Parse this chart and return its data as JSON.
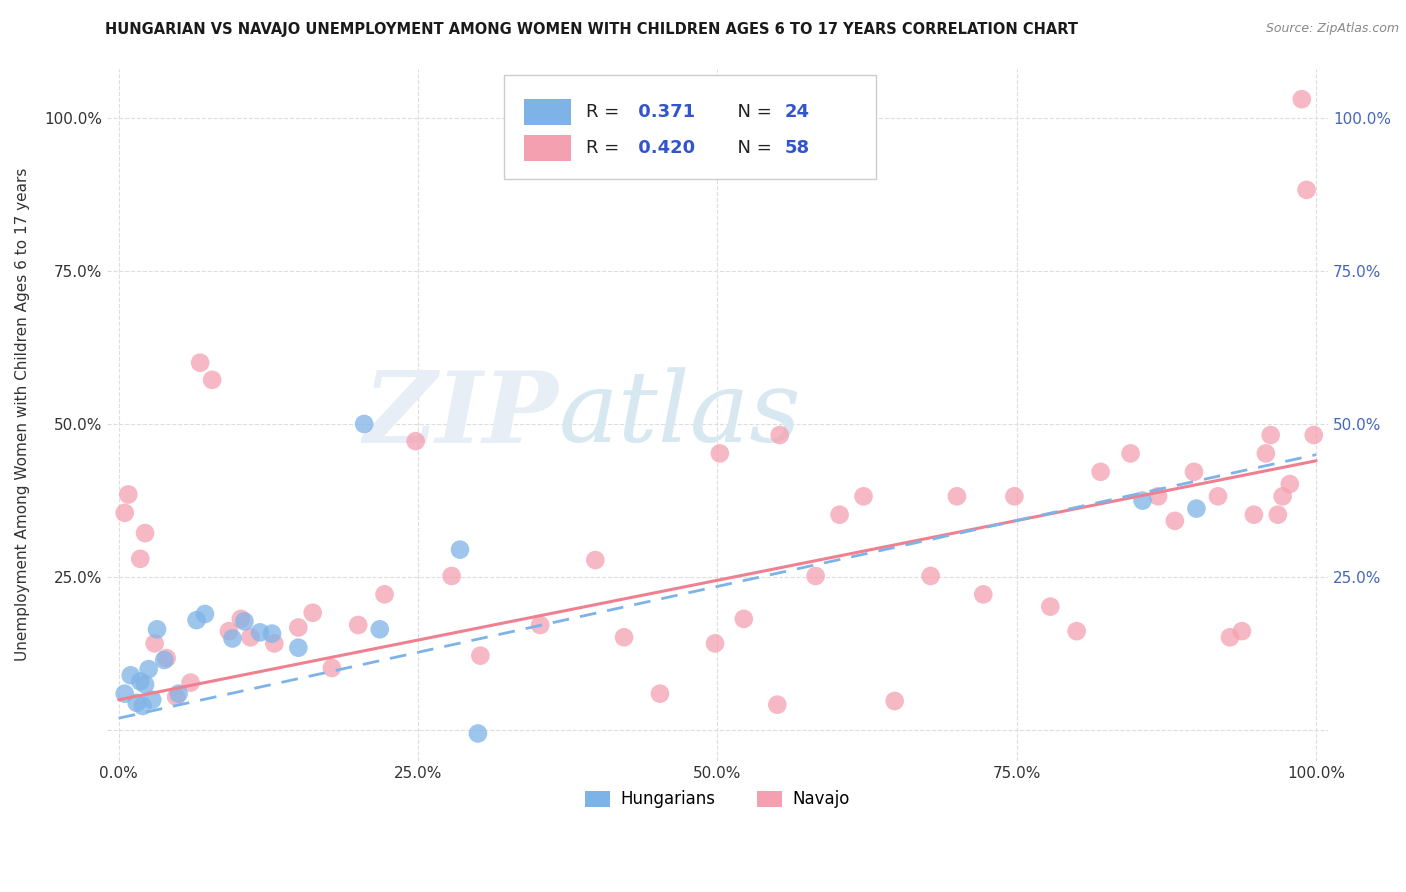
{
  "title": "HUNGARIAN VS NAVAJO UNEMPLOYMENT AMONG WOMEN WITH CHILDREN AGES 6 TO 17 YEARS CORRELATION CHART",
  "source": "Source: ZipAtlas.com",
  "ylabel": "Unemployment Among Women with Children Ages 6 to 17 years",
  "xlim": [
    -0.01,
    1.01
  ],
  "ylim": [
    -0.05,
    1.08
  ],
  "xtick_labels": [
    "0.0%",
    "25.0%",
    "50.0%",
    "75.0%",
    "100.0%"
  ],
  "xtick_vals": [
    0.0,
    0.25,
    0.5,
    0.75,
    1.0
  ],
  "ytick_labels": [
    "",
    "25.0%",
    "50.0%",
    "75.0%",
    "100.0%"
  ],
  "ytick_vals": [
    0.0,
    0.25,
    0.5,
    0.75,
    1.0
  ],
  "right_ytick_labels": [
    "",
    "25.0%",
    "50.0%",
    "75.0%",
    "100.0%"
  ],
  "hungarian_color": "#7EB3E8",
  "navajo_color": "#F4A0B0",
  "hungarian_line_color": "#7EB3E8",
  "navajo_line_color": "#F08090",
  "hungarian_R": 0.371,
  "hungarian_N": 24,
  "navajo_R": 0.42,
  "navajo_N": 58,
  "legend_label_hungarian": "Hungarians",
  "legend_label_navajo": "Navajo",
  "background_color": "#FFFFFF",
  "grid_color": "#DDDDDD",
  "right_label_color": "#4466BB",
  "hungarian_x": [
    0.005,
    0.01,
    0.015,
    0.018,
    0.02,
    0.022,
    0.025,
    0.028,
    0.032,
    0.038,
    0.05,
    0.065,
    0.072,
    0.095,
    0.105,
    0.118,
    0.128,
    0.15,
    0.205,
    0.218,
    0.285,
    0.3,
    0.855,
    0.9
  ],
  "hungarian_y": [
    0.06,
    0.09,
    0.045,
    0.08,
    0.04,
    0.075,
    0.1,
    0.05,
    0.165,
    0.115,
    0.06,
    0.18,
    0.19,
    0.15,
    0.178,
    0.16,
    0.158,
    0.135,
    0.5,
    0.165,
    0.295,
    -0.005,
    0.375,
    0.362
  ],
  "navajo_x": [
    0.005,
    0.008,
    0.018,
    0.022,
    0.03,
    0.04,
    0.048,
    0.06,
    0.068,
    0.078,
    0.092,
    0.102,
    0.11,
    0.13,
    0.15,
    0.162,
    0.178,
    0.2,
    0.222,
    0.248,
    0.278,
    0.302,
    0.352,
    0.398,
    0.422,
    0.452,
    0.498,
    0.522,
    0.55,
    0.582,
    0.602,
    0.622,
    0.648,
    0.678,
    0.7,
    0.722,
    0.748,
    0.778,
    0.8,
    0.82,
    0.845,
    0.868,
    0.882,
    0.898,
    0.918,
    0.928,
    0.938,
    0.948,
    0.958,
    0.962,
    0.968,
    0.972,
    0.978,
    0.988,
    0.992,
    0.998,
    0.502,
    0.552
  ],
  "navajo_y": [
    0.355,
    0.385,
    0.28,
    0.322,
    0.142,
    0.118,
    0.055,
    0.078,
    0.6,
    0.572,
    0.162,
    0.182,
    0.152,
    0.142,
    0.168,
    0.192,
    0.102,
    0.172,
    0.222,
    0.472,
    0.252,
    0.122,
    0.172,
    0.278,
    0.152,
    0.06,
    0.142,
    0.182,
    0.042,
    0.252,
    0.352,
    0.382,
    0.048,
    0.252,
    0.382,
    0.222,
    0.382,
    0.202,
    0.162,
    0.422,
    0.452,
    0.382,
    0.342,
    0.422,
    0.382,
    0.152,
    0.162,
    0.352,
    0.452,
    0.482,
    0.352,
    0.382,
    0.402,
    1.03,
    0.882,
    0.482,
    0.452,
    0.482
  ]
}
